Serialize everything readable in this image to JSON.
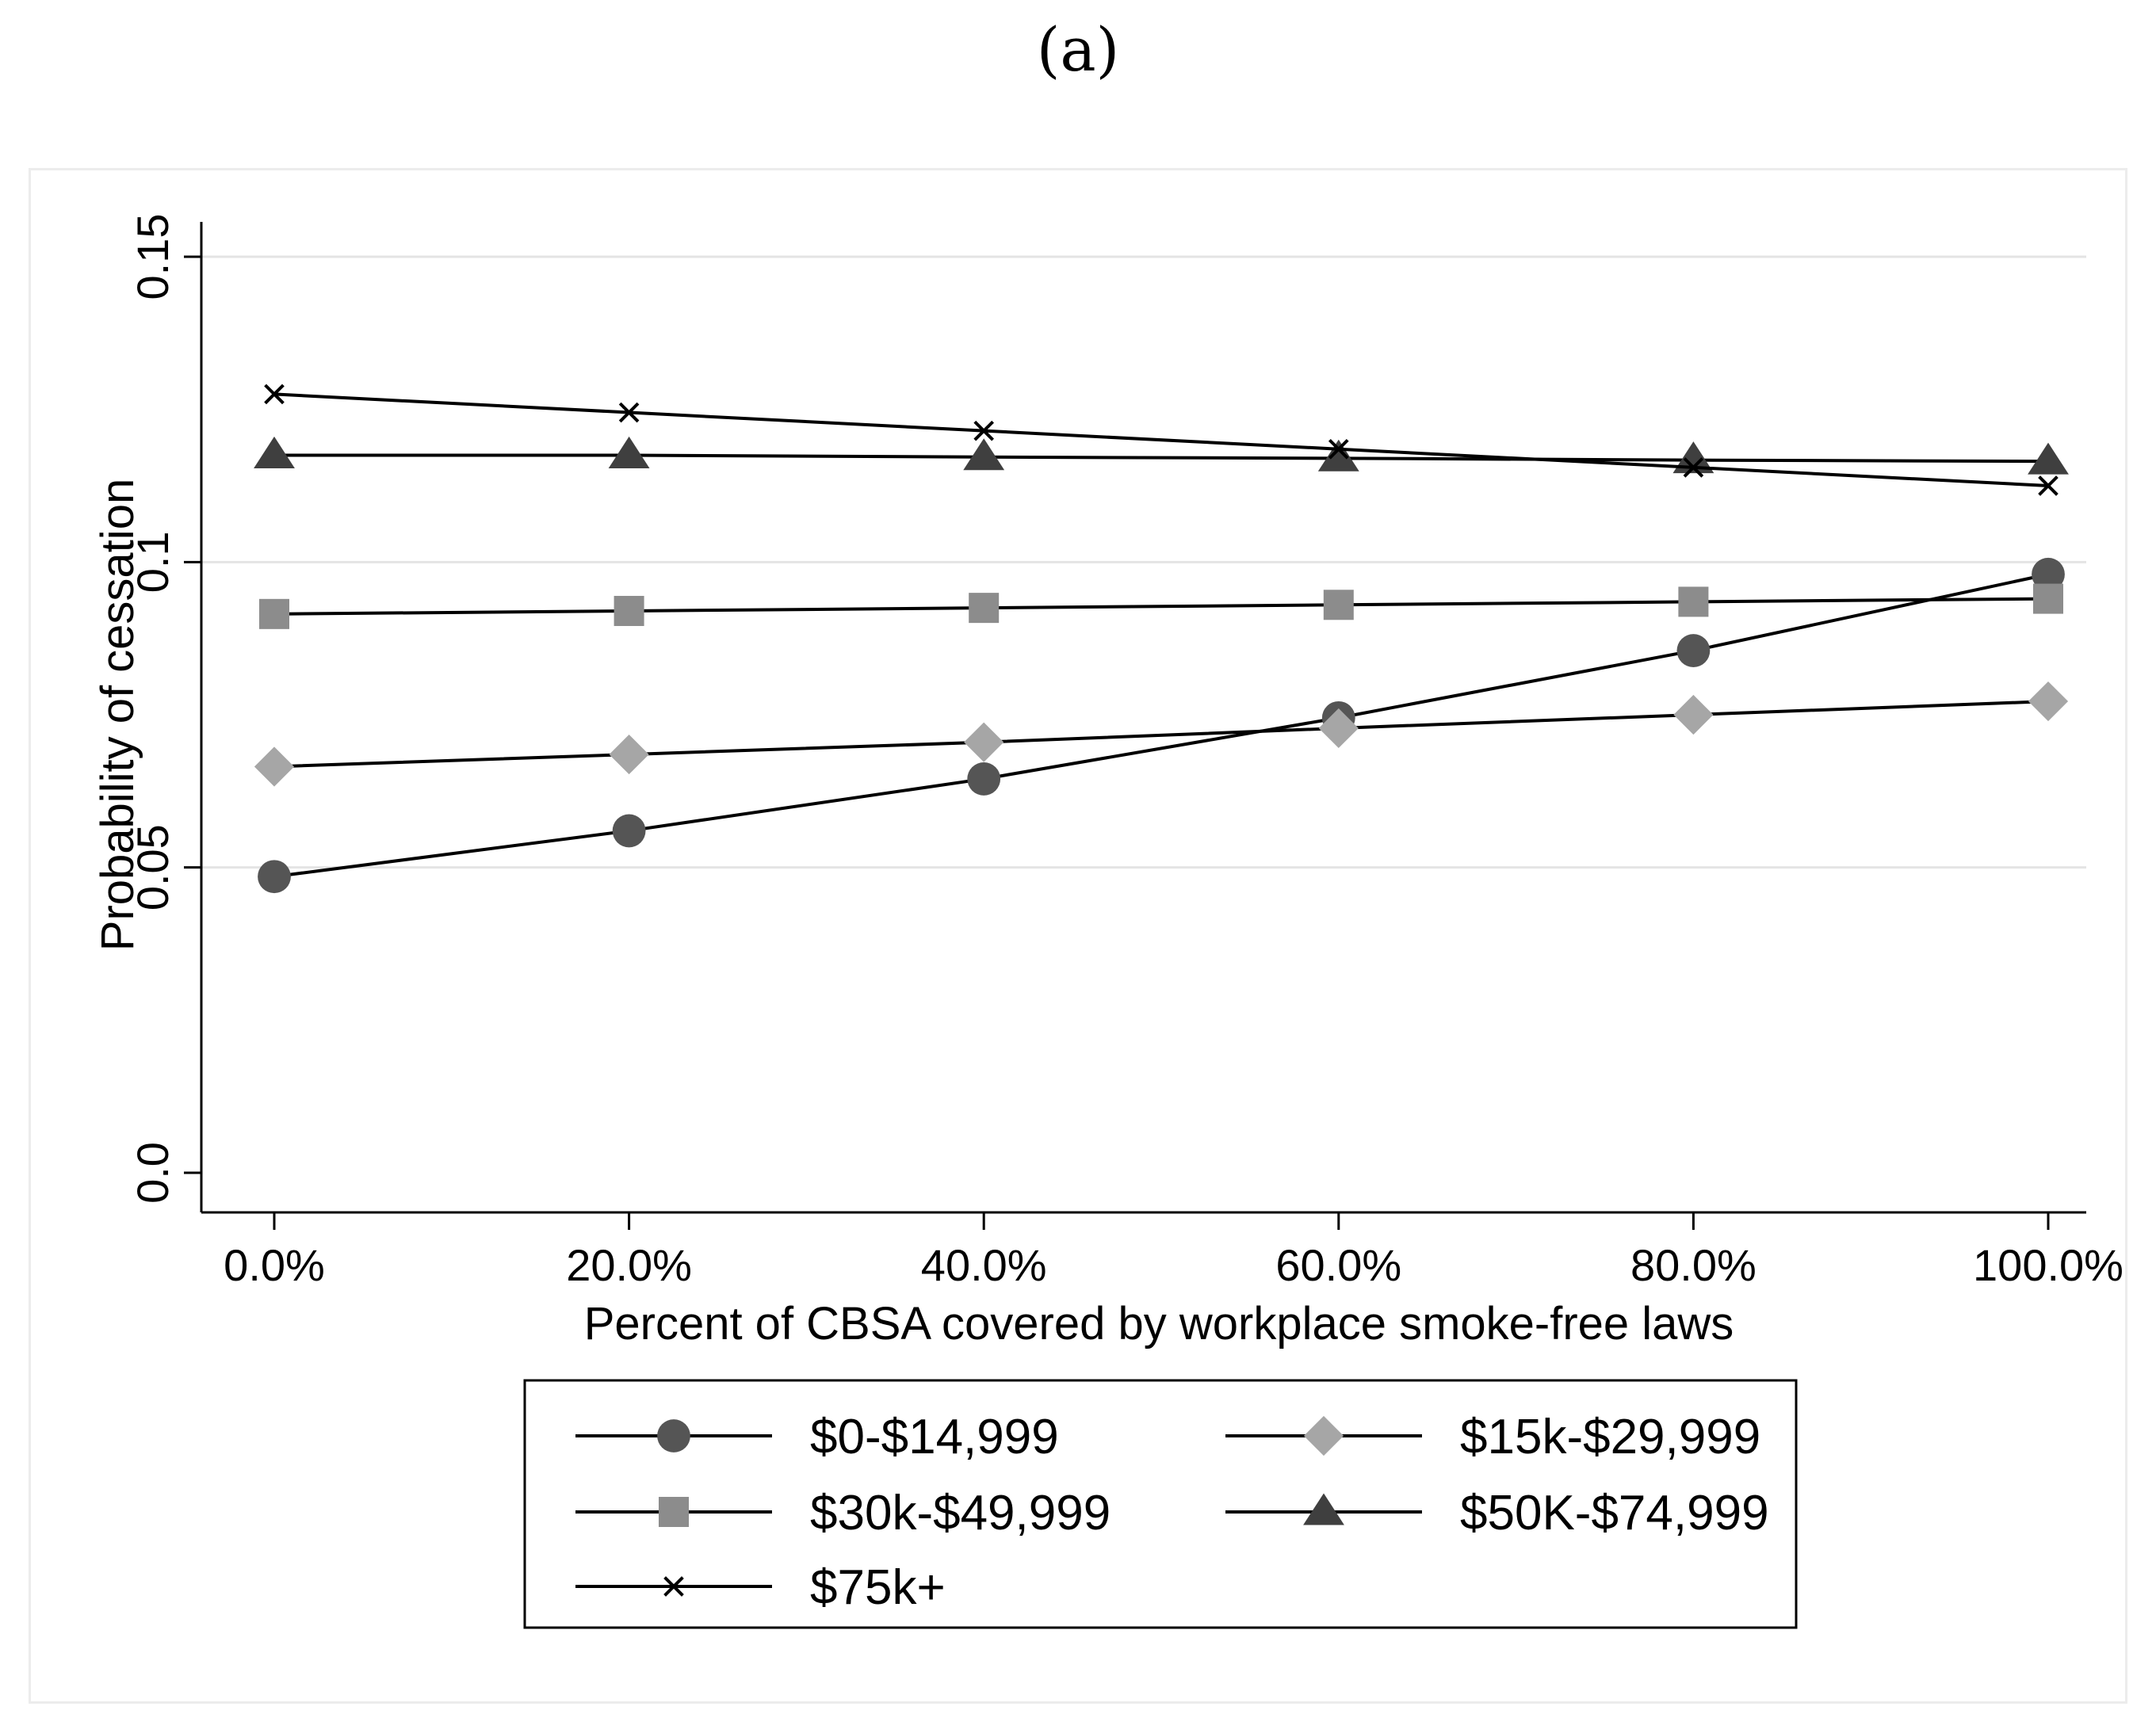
{
  "panel_label": "(a)",
  "chart_data": {
    "type": "line",
    "title": "",
    "xlabel": "Percent of CBSA covered by workplace smoke-free laws",
    "ylabel": "Probability of cessation",
    "x": [
      0,
      20,
      40,
      60,
      80,
      100
    ],
    "x_tick_labels": [
      "0.0%",
      "20.0%",
      "40.0%",
      "60.0%",
      "80.0%",
      "100.0%"
    ],
    "xlim": [
      0,
      100
    ],
    "y_ticks": [
      0,
      0.05,
      0.1,
      0.15
    ],
    "y_tick_labels": [
      "0.0",
      "0.05",
      "0.1",
      "0.15"
    ],
    "ylim": [
      0,
      0.15
    ],
    "grid": true,
    "legend_position": "bottom",
    "series": [
      {
        "name": "$0-$14,999",
        "marker": "circle",
        "color": "#555555",
        "values": [
          0.0485,
          0.056,
          0.0645,
          0.0745,
          0.0855,
          0.098
        ]
      },
      {
        "name": "$15k-$29,999",
        "marker": "diamond",
        "color": "#a6a6a6",
        "values": [
          0.0665,
          0.0685,
          0.0705,
          0.0728,
          0.075,
          0.0772
        ]
      },
      {
        "name": "$30k-$49,999",
        "marker": "square",
        "color": "#8c8c8c",
        "values": [
          0.0915,
          0.092,
          0.0925,
          0.093,
          0.0935,
          0.094
        ]
      },
      {
        "name": "$50K-$74,999",
        "marker": "triangle",
        "color": "#3f3f3f",
        "values": [
          0.1175,
          0.1175,
          0.1172,
          0.117,
          0.1167,
          0.1165
        ]
      },
      {
        "name": "$75k+",
        "marker": "x",
        "color": "#000000",
        "values": [
          0.1275,
          0.1245,
          0.1215,
          0.1185,
          0.1155,
          0.1125
        ]
      }
    ]
  }
}
